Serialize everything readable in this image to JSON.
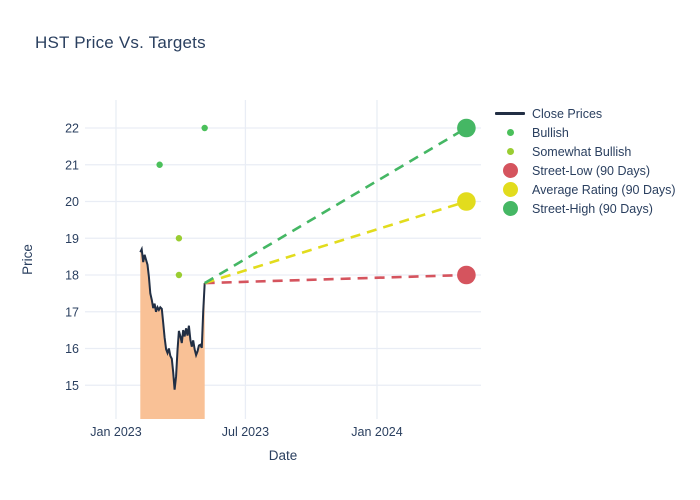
{
  "title": "HST Price Vs. Targets",
  "colors": {
    "background": "#ffffff",
    "text": "#2a3f5f",
    "grid": "#e9edf5",
    "close_line": "#222f44",
    "close_fill": "#f9c196",
    "bullish": "#4bc05b",
    "somewhat_bullish": "#9acd32",
    "street_low": "#d5545e",
    "average_rating": "#e2dc1d",
    "street_high": "#45b764"
  },
  "axes": {
    "x": {
      "label": "Date",
      "ticks": [
        {
          "label": "Jan 2023",
          "date": "2023-01-01"
        },
        {
          "label": "Jul 2023",
          "date": "2023-07-01"
        },
        {
          "label": "Jan 2024",
          "date": "2024-01-01"
        }
      ]
    },
    "y": {
      "label": "Price",
      "ticks": [
        15,
        16,
        17,
        18,
        19,
        20,
        21,
        22
      ]
    }
  },
  "legend": {
    "items": [
      {
        "label": "Close Prices",
        "marker": "line",
        "color": "#222f44"
      },
      {
        "label": "Bullish",
        "marker": "dot-small",
        "color": "#4bc05b"
      },
      {
        "label": "Somewhat Bullish",
        "marker": "dot-small",
        "color": "#9acd32"
      },
      {
        "label": "Street-Low (90 Days)",
        "marker": "dot-large",
        "color": "#d5545e"
      },
      {
        "label": "Average Rating (90 Days)",
        "marker": "dot-large",
        "color": "#e2dc1d"
      },
      {
        "label": "Street-High (90 Days)",
        "marker": "dot-large",
        "color": "#45b764"
      }
    ]
  },
  "chart_data": {
    "type": "line",
    "title": "HST Price Vs. Targets",
    "xlabel": "Date",
    "ylabel": "Price",
    "xlim": [
      "2022-11-19",
      "2024-05-24"
    ],
    "ylim": [
      14.1,
      22.8
    ],
    "grid": true,
    "legend_position": "right",
    "series": [
      {
        "name": "Close Prices",
        "type": "line",
        "fill": "to-bottom",
        "color": "#222f44",
        "fill_color": "#f9c196",
        "x": [
          "2023-02-04",
          "2023-02-06",
          "2023-02-08",
          "2023-02-10",
          "2023-02-12",
          "2023-02-14",
          "2023-02-16",
          "2023-02-18",
          "2023-02-20",
          "2023-02-22",
          "2023-02-24",
          "2023-02-26",
          "2023-02-28",
          "2023-03-02",
          "2023-03-04",
          "2023-03-06",
          "2023-03-08",
          "2023-03-10",
          "2023-03-12",
          "2023-03-14",
          "2023-03-16",
          "2023-03-18",
          "2023-03-20",
          "2023-03-22",
          "2023-03-24",
          "2023-03-26",
          "2023-03-28",
          "2023-03-30",
          "2023-04-01",
          "2023-04-03",
          "2023-04-05",
          "2023-04-07",
          "2023-04-09",
          "2023-04-11",
          "2023-04-13",
          "2023-04-15",
          "2023-04-17",
          "2023-04-19",
          "2023-04-21",
          "2023-04-23",
          "2023-04-25",
          "2023-04-27",
          "2023-04-29",
          "2023-05-01",
          "2023-05-03",
          "2023-05-05"
        ],
        "y": [
          18.62,
          18.7,
          18.35,
          18.55,
          18.42,
          18.28,
          17.95,
          17.5,
          17.32,
          17.1,
          17.22,
          17.0,
          17.12,
          17.05,
          17.12,
          17.08,
          16.7,
          16.3,
          15.98,
          15.88,
          16.0,
          15.8,
          15.72,
          15.35,
          14.88,
          15.25,
          15.95,
          16.48,
          16.33,
          16.15,
          16.5,
          16.33,
          16.55,
          16.35,
          16.62,
          16.23,
          16.05,
          16.22,
          15.97,
          15.82,
          15.92,
          16.08,
          16.1,
          16.02,
          17.0,
          17.78
        ]
      },
      {
        "name": "Bullish",
        "type": "scatter",
        "color": "#4bc05b",
        "x": [
          "2023-03-03",
          "2023-05-05"
        ],
        "y": [
          21,
          22
        ]
      },
      {
        "name": "Somewhat Bullish",
        "type": "scatter",
        "color": "#9acd32",
        "x": [
          "2023-03-30",
          "2023-03-30"
        ],
        "y": [
          19,
          18
        ]
      },
      {
        "name": "Street-Low (90 Days)",
        "type": "dashed-target",
        "color": "#d5545e",
        "x": [
          "2023-05-05",
          "2024-05-05"
        ],
        "y": [
          17.78,
          18
        ]
      },
      {
        "name": "Average Rating (90 Days)",
        "type": "dashed-target",
        "color": "#e2dc1d",
        "x": [
          "2023-05-05",
          "2024-05-05"
        ],
        "y": [
          17.78,
          20
        ]
      },
      {
        "name": "Street-High (90 Days)",
        "type": "dashed-target",
        "color": "#45b764",
        "x": [
          "2023-05-05",
          "2024-05-05"
        ],
        "y": [
          17.78,
          22
        ]
      }
    ]
  }
}
